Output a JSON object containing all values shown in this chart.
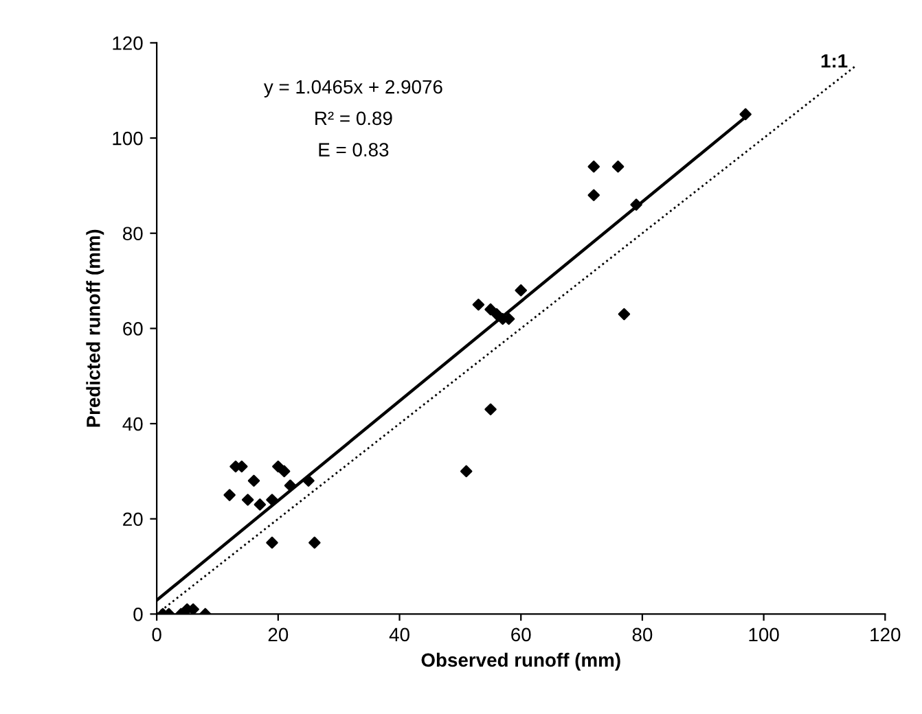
{
  "chart_data": {
    "type": "scatter",
    "xlabel": "Observed runoff (mm)",
    "ylabel": "Predicted runoff (mm)",
    "xlim": [
      0,
      120
    ],
    "ylim": [
      0,
      120
    ],
    "xticks": [
      0,
      20,
      40,
      60,
      80,
      100,
      120
    ],
    "yticks": [
      0,
      20,
      40,
      60,
      80,
      100,
      120
    ],
    "grid": false,
    "legend": false,
    "series": [
      {
        "color": "#000000",
        "marker": "diamond",
        "x": [
          1,
          2,
          4,
          5,
          6,
          8,
          12,
          13,
          14,
          15,
          16,
          17,
          19,
          19,
          20,
          21,
          22,
          25,
          26,
          51,
          53,
          55,
          55,
          56,
          57,
          58,
          60,
          72,
          72,
          76,
          77,
          79,
          97
        ],
        "values": [
          0,
          0,
          0,
          1,
          1,
          0,
          25,
          31,
          31,
          24,
          28,
          23,
          15,
          24,
          31,
          30,
          27,
          28,
          15,
          30,
          65,
          64,
          43,
          63,
          62,
          62,
          68,
          94,
          88,
          94,
          63,
          86,
          105
        ]
      },
      {
        "type": "line",
        "color": "#000000",
        "line_style": "solid",
        "marker": "none",
        "x": [
          0,
          97
        ],
        "values": [
          2.9,
          104.4
        ]
      },
      {
        "type": "line",
        "color": "#000000",
        "line_style": "dotted",
        "marker": "none",
        "x": [
          0,
          115
        ],
        "values": [
          0,
          115
        ]
      }
    ],
    "annotations": [
      {
        "text": "y = 1.0465x + 2.9076"
      },
      {
        "text": "R² = 0.89"
      },
      {
        "text": "E = 0.83"
      },
      "1:1"
    ]
  }
}
